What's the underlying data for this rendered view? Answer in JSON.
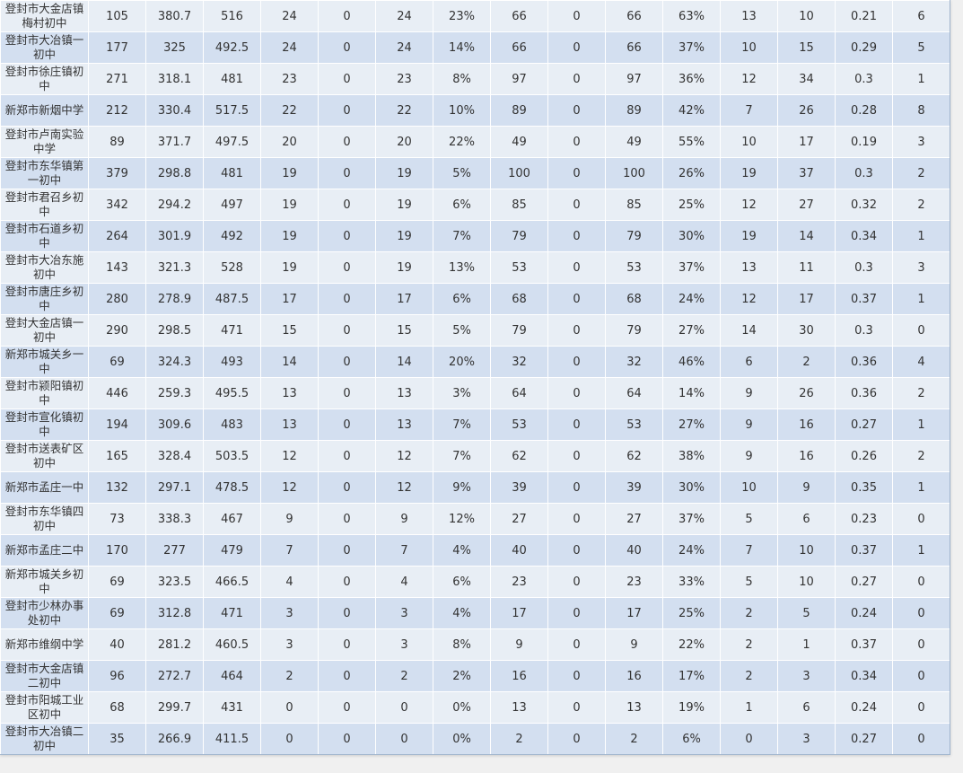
{
  "rows": [
    [
      "登封市大金店镇梅村初中",
      "105",
      "380.7",
      "516",
      "24",
      "0",
      "24",
      "23%",
      "66",
      "0",
      "66",
      "63%",
      "13",
      "10",
      "0.21",
      "6"
    ],
    [
      "登封市大冶镇一初中",
      "177",
      "325",
      "492.5",
      "24",
      "0",
      "24",
      "14%",
      "66",
      "0",
      "66",
      "37%",
      "10",
      "15",
      "0.29",
      "5"
    ],
    [
      "登封市徐庄镇初中",
      "271",
      "318.1",
      "481",
      "23",
      "0",
      "23",
      "8%",
      "97",
      "0",
      "97",
      "36%",
      "12",
      "34",
      "0.3",
      "1"
    ],
    [
      "新郑市新烟中学",
      "212",
      "330.4",
      "517.5",
      "22",
      "0",
      "22",
      "10%",
      "89",
      "0",
      "89",
      "42%",
      "7",
      "26",
      "0.28",
      "8"
    ],
    [
      "登封市卢南实验中学",
      "89",
      "371.7",
      "497.5",
      "20",
      "0",
      "20",
      "22%",
      "49",
      "0",
      "49",
      "55%",
      "10",
      "17",
      "0.19",
      "3"
    ],
    [
      "登封市东华镇第一初中",
      "379",
      "298.8",
      "481",
      "19",
      "0",
      "19",
      "5%",
      "100",
      "0",
      "100",
      "26%",
      "19",
      "37",
      "0.3",
      "2"
    ],
    [
      "登封市君召乡初中",
      "342",
      "294.2",
      "497",
      "19",
      "0",
      "19",
      "6%",
      "85",
      "0",
      "85",
      "25%",
      "12",
      "27",
      "0.32",
      "2"
    ],
    [
      "登封市石道乡初中",
      "264",
      "301.9",
      "492",
      "19",
      "0",
      "19",
      "7%",
      "79",
      "0",
      "79",
      "30%",
      "19",
      "14",
      "0.34",
      "1"
    ],
    [
      "登封市大冶东施初中",
      "143",
      "321.3",
      "528",
      "19",
      "0",
      "19",
      "13%",
      "53",
      "0",
      "53",
      "37%",
      "13",
      "11",
      "0.3",
      "3"
    ],
    [
      "登封市唐庄乡初中",
      "280",
      "278.9",
      "487.5",
      "17",
      "0",
      "17",
      "6%",
      "68",
      "0",
      "68",
      "24%",
      "12",
      "17",
      "0.37",
      "1"
    ],
    [
      "登封大金店镇一初中",
      "290",
      "298.5",
      "471",
      "15",
      "0",
      "15",
      "5%",
      "79",
      "0",
      "79",
      "27%",
      "14",
      "30",
      "0.3",
      "0"
    ],
    [
      "新郑市城关乡一中",
      "69",
      "324.3",
      "493",
      "14",
      "0",
      "14",
      "20%",
      "32",
      "0",
      "32",
      "46%",
      "6",
      "2",
      "0.36",
      "4"
    ],
    [
      "登封市颍阳镇初中",
      "446",
      "259.3",
      "495.5",
      "13",
      "0",
      "13",
      "3%",
      "64",
      "0",
      "64",
      "14%",
      "9",
      "26",
      "0.36",
      "2"
    ],
    [
      "登封市宣化镇初中",
      "194",
      "309.6",
      "483",
      "13",
      "0",
      "13",
      "7%",
      "53",
      "0",
      "53",
      "27%",
      "9",
      "16",
      "0.27",
      "1"
    ],
    [
      "登封市送表矿区初中",
      "165",
      "328.4",
      "503.5",
      "12",
      "0",
      "12",
      "7%",
      "62",
      "0",
      "62",
      "38%",
      "9",
      "16",
      "0.26",
      "2"
    ],
    [
      "新郑市孟庄一中",
      "132",
      "297.1",
      "478.5",
      "12",
      "0",
      "12",
      "9%",
      "39",
      "0",
      "39",
      "30%",
      "10",
      "9",
      "0.35",
      "1"
    ],
    [
      "登封市东华镇四初中",
      "73",
      "338.3",
      "467",
      "9",
      "0",
      "9",
      "12%",
      "27",
      "0",
      "27",
      "37%",
      "5",
      "6",
      "0.23",
      "0"
    ],
    [
      "新郑市孟庄二中",
      "170",
      "277",
      "479",
      "7",
      "0",
      "7",
      "4%",
      "40",
      "0",
      "40",
      "24%",
      "7",
      "10",
      "0.37",
      "1"
    ],
    [
      "新郑市城关乡初中",
      "69",
      "323.5",
      "466.5",
      "4",
      "0",
      "4",
      "6%",
      "23",
      "0",
      "23",
      "33%",
      "5",
      "10",
      "0.27",
      "0"
    ],
    [
      "登封市少林办事处初中",
      "69",
      "312.8",
      "471",
      "3",
      "0",
      "3",
      "4%",
      "17",
      "0",
      "17",
      "25%",
      "2",
      "5",
      "0.24",
      "0"
    ],
    [
      "新郑市维纲中学",
      "40",
      "281.2",
      "460.5",
      "3",
      "0",
      "3",
      "8%",
      "9",
      "0",
      "9",
      "22%",
      "2",
      "1",
      "0.37",
      "0"
    ],
    [
      "登封市大金店镇二初中",
      "96",
      "272.7",
      "464",
      "2",
      "0",
      "2",
      "2%",
      "16",
      "0",
      "16",
      "17%",
      "2",
      "3",
      "0.34",
      "0"
    ],
    [
      "登封市阳城工业区初中",
      "68",
      "299.7",
      "431",
      "0",
      "0",
      "0",
      "0%",
      "13",
      "0",
      "13",
      "19%",
      "1",
      "6",
      "0.24",
      "0"
    ],
    [
      "登封市大冶镇二初中",
      "35",
      "266.9",
      "411.5",
      "0",
      "0",
      "0",
      "0%",
      "2",
      "0",
      "2",
      "6%",
      "0",
      "3",
      "0.27",
      "0"
    ]
  ]
}
